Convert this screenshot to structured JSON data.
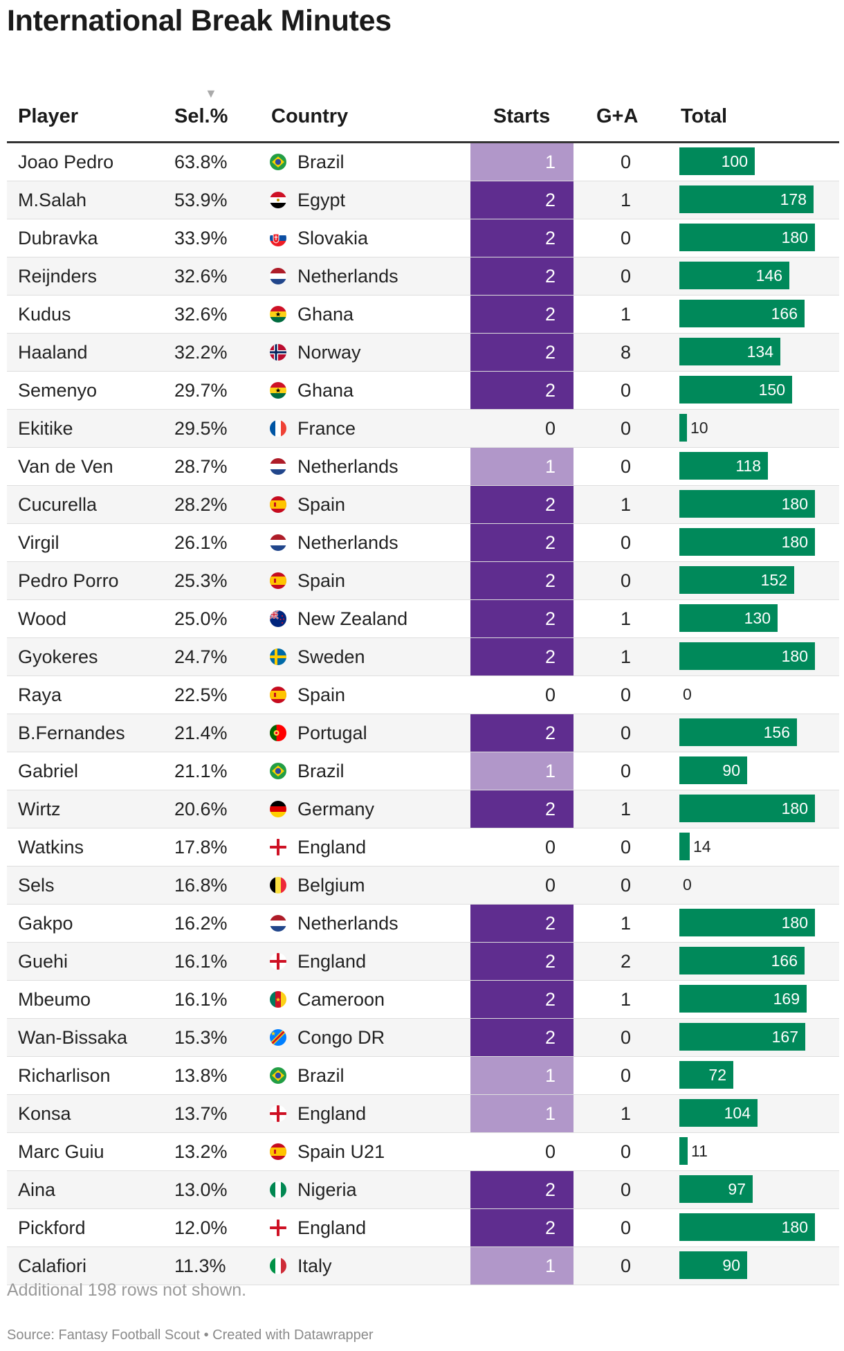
{
  "title": "International Break Minutes",
  "columns": {
    "player": "Player",
    "sel": "Sel.%",
    "country": "Country",
    "starts": "Starts",
    "ga": "G+A",
    "total": "Total"
  },
  "sort_indicator": "▼",
  "note": "Additional 198 rows not shown.",
  "source": "Source: Fantasy Football Scout • Created with Datawrapper",
  "colors": {
    "starts_1": "#b197c9",
    "starts_2": "#5f2d8f",
    "total_bar": "#00895a"
  },
  "chart_data": {
    "type": "table",
    "total_range": [
      0,
      180
    ],
    "rows": [
      {
        "player": "Joao Pedro",
        "sel": "63.8%",
        "country": "Brazil",
        "flag": "brazil-flag-icon",
        "starts": 1,
        "ga": 0,
        "total": 100
      },
      {
        "player": "M.Salah",
        "sel": "53.9%",
        "country": "Egypt",
        "flag": "egypt-flag-icon",
        "starts": 2,
        "ga": 1,
        "total": 178
      },
      {
        "player": "Dubravka",
        "sel": "33.9%",
        "country": "Slovakia",
        "flag": "slovakia-flag-icon",
        "starts": 2,
        "ga": 0,
        "total": 180
      },
      {
        "player": "Reijnders",
        "sel": "32.6%",
        "country": "Netherlands",
        "flag": "netherlands-flag-icon",
        "starts": 2,
        "ga": 0,
        "total": 146
      },
      {
        "player": "Kudus",
        "sel": "32.6%",
        "country": "Ghana",
        "flag": "ghana-flag-icon",
        "starts": 2,
        "ga": 1,
        "total": 166
      },
      {
        "player": "Haaland",
        "sel": "32.2%",
        "country": "Norway",
        "flag": "norway-flag-icon",
        "starts": 2,
        "ga": 8,
        "total": 134
      },
      {
        "player": "Semenyo",
        "sel": "29.7%",
        "country": "Ghana",
        "flag": "ghana-flag-icon",
        "starts": 2,
        "ga": 0,
        "total": 150
      },
      {
        "player": "Ekitike",
        "sel": "29.5%",
        "country": "France",
        "flag": "france-flag-icon",
        "starts": 0,
        "ga": 0,
        "total": 10
      },
      {
        "player": "Van de Ven",
        "sel": "28.7%",
        "country": "Netherlands",
        "flag": "netherlands-flag-icon",
        "starts": 1,
        "ga": 0,
        "total": 118
      },
      {
        "player": "Cucurella",
        "sel": "28.2%",
        "country": "Spain",
        "flag": "spain-flag-icon",
        "starts": 2,
        "ga": 1,
        "total": 180
      },
      {
        "player": "Virgil",
        "sel": "26.1%",
        "country": "Netherlands",
        "flag": "netherlands-flag-icon",
        "starts": 2,
        "ga": 0,
        "total": 180
      },
      {
        "player": "Pedro Porro",
        "sel": "25.3%",
        "country": "Spain",
        "flag": "spain-flag-icon",
        "starts": 2,
        "ga": 0,
        "total": 152
      },
      {
        "player": "Wood",
        "sel": "25.0%",
        "country": "New Zealand",
        "flag": "new-zealand-flag-icon",
        "starts": 2,
        "ga": 1,
        "total": 130
      },
      {
        "player": "Gyokeres",
        "sel": "24.7%",
        "country": "Sweden",
        "flag": "sweden-flag-icon",
        "starts": 2,
        "ga": 1,
        "total": 180
      },
      {
        "player": "Raya",
        "sel": "22.5%",
        "country": "Spain",
        "flag": "spain-flag-icon",
        "starts": 0,
        "ga": 0,
        "total": 0
      },
      {
        "player": "B.Fernandes",
        "sel": "21.4%",
        "country": "Portugal",
        "flag": "portugal-flag-icon",
        "starts": 2,
        "ga": 0,
        "total": 156
      },
      {
        "player": "Gabriel",
        "sel": "21.1%",
        "country": "Brazil",
        "flag": "brazil-flag-icon",
        "starts": 1,
        "ga": 0,
        "total": 90
      },
      {
        "player": "Wirtz",
        "sel": "20.6%",
        "country": "Germany",
        "flag": "germany-flag-icon",
        "starts": 2,
        "ga": 1,
        "total": 180
      },
      {
        "player": "Watkins",
        "sel": "17.8%",
        "country": "England",
        "flag": "england-flag-icon",
        "starts": 0,
        "ga": 0,
        "total": 14
      },
      {
        "player": "Sels",
        "sel": "16.8%",
        "country": "Belgium",
        "flag": "belgium-flag-icon",
        "starts": 0,
        "ga": 0,
        "total": 0
      },
      {
        "player": "Gakpo",
        "sel": "16.2%",
        "country": "Netherlands",
        "flag": "netherlands-flag-icon",
        "starts": 2,
        "ga": 1,
        "total": 180
      },
      {
        "player": "Guehi",
        "sel": "16.1%",
        "country": "England",
        "flag": "england-flag-icon",
        "starts": 2,
        "ga": 2,
        "total": 166
      },
      {
        "player": "Mbeumo",
        "sel": "16.1%",
        "country": "Cameroon",
        "flag": "cameroon-flag-icon",
        "starts": 2,
        "ga": 1,
        "total": 169
      },
      {
        "player": "Wan-Bissaka",
        "sel": "15.3%",
        "country": "Congo DR",
        "flag": "congo-dr-flag-icon",
        "starts": 2,
        "ga": 0,
        "total": 167
      },
      {
        "player": "Richarlison",
        "sel": "13.8%",
        "country": "Brazil",
        "flag": "brazil-flag-icon",
        "starts": 1,
        "ga": 0,
        "total": 72
      },
      {
        "player": "Konsa",
        "sel": "13.7%",
        "country": "England",
        "flag": "england-flag-icon",
        "starts": 1,
        "ga": 1,
        "total": 104
      },
      {
        "player": "Marc Guiu",
        "sel": "13.2%",
        "country": "Spain U21",
        "flag": "spain-flag-icon",
        "starts": 0,
        "ga": 0,
        "total": 11
      },
      {
        "player": "Aina",
        "sel": "13.0%",
        "country": "Nigeria",
        "flag": "nigeria-flag-icon",
        "starts": 2,
        "ga": 0,
        "total": 97
      },
      {
        "player": "Pickford",
        "sel": "12.0%",
        "country": "England",
        "flag": "england-flag-icon",
        "starts": 2,
        "ga": 0,
        "total": 180
      },
      {
        "player": "Calafiori",
        "sel": "11.3%",
        "country": "Italy",
        "flag": "italy-flag-icon",
        "starts": 1,
        "ga": 0,
        "total": 90
      }
    ]
  }
}
